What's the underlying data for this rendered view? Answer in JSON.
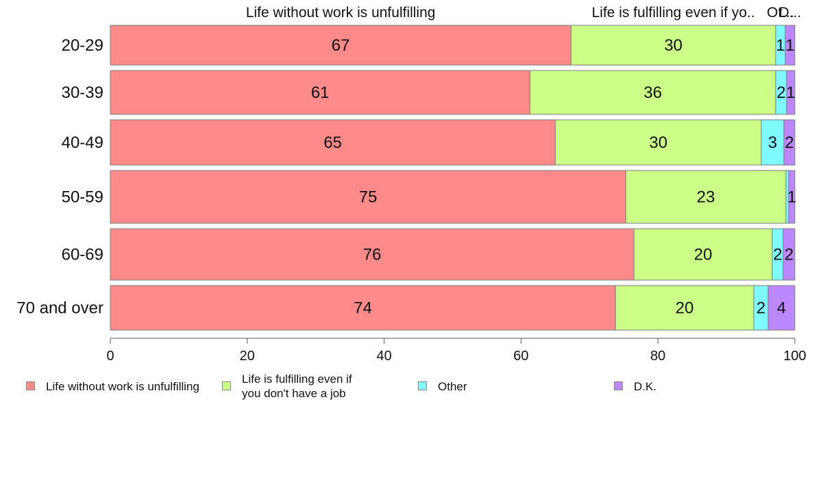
{
  "chart_data": {
    "type": "bar",
    "orientation": "horizontal",
    "stacked": true,
    "categories": [
      "20-29",
      "30-39",
      "40-49",
      "50-59",
      "60-69",
      "70 and over"
    ],
    "series": [
      {
        "name": "Life without work is unfulfilling",
        "color": "#ff8a8a",
        "values": [
          67.3,
          61.3,
          65.0,
          75.3,
          76.5,
          73.8
        ]
      },
      {
        "name": "Life is fulfilling even if\nyou don't have a job",
        "color": "#ccff88",
        "values": [
          29.9,
          35.9,
          30.1,
          23.4,
          20.2,
          20.2
        ]
      },
      {
        "name": "Other",
        "color": "#7ffbff",
        "values": [
          1.4,
          1.6,
          3.3,
          0.4,
          1.6,
          2.1
        ]
      },
      {
        "name": "D.K.",
        "color": "#bb88ff",
        "values": [
          1.4,
          1.2,
          1.6,
          0.9,
          1.7,
          3.9
        ]
      }
    ],
    "data_labels": [
      [
        "67",
        "30",
        "1",
        "1"
      ],
      [
        "61",
        "36",
        "2",
        "1"
      ],
      [
        "65",
        "30",
        "3",
        "2"
      ],
      [
        "75",
        "23",
        "",
        "1"
      ],
      [
        "76",
        "20",
        "2",
        "2"
      ],
      [
        "74",
        "20",
        "2",
        "4"
      ]
    ],
    "top_labels": [
      "Life without work is unfulfilling",
      "Life is fulfilling even if yo..",
      "Ot...",
      "D..."
    ],
    "x_ticks": [
      0,
      20,
      40,
      60,
      80,
      100
    ],
    "xlim": [
      0,
      100
    ],
    "legend_position": "bottom"
  }
}
